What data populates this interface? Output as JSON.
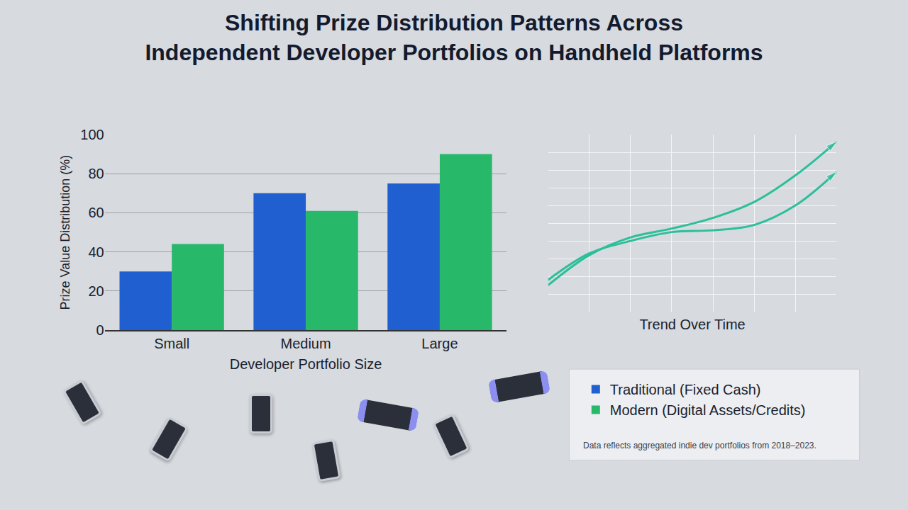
{
  "chart_data": [
    {
      "type": "bar",
      "title": "Shifting Prize Distribution Patterns Across Independent Developer Portfolios on Handheld Platforms",
      "xlabel": "Developer Portfolio Size",
      "ylabel": "Prize Value Distribution (%)",
      "categories": [
        "Small",
        "Medium",
        "Large"
      ],
      "series": [
        {
          "name": "Traditional (Fixed Cash)",
          "color": "#1f5fd0",
          "values": [
            30,
            70,
            75
          ]
        },
        {
          "name": "Modern (Digital Assets/Credits)",
          "color": "#27b86a",
          "values": [
            44,
            61,
            90
          ]
        }
      ],
      "ylim": [
        0,
        100
      ],
      "yticks": [
        0,
        20,
        40,
        60,
        80,
        100
      ],
      "grid": true,
      "legend": "bottom right",
      "annotations": [
        "Data reflects aggregated indie dev portfolios from 2018–2023."
      ]
    },
    {
      "type": "line",
      "xlabel": "Trend Over Time",
      "x": [
        0,
        1,
        2,
        3,
        4,
        5,
        6,
        7
      ],
      "series": [
        {
          "color": "#2bbf9a",
          "marker": "arrow",
          "values": [
            1.5,
            3.2,
            4.2,
            4.7,
            5.3,
            6.2,
            7.7,
            9.6
          ]
        },
        {
          "color": "#2bbf9a",
          "marker": "arrow",
          "values": [
            1.8,
            3.3,
            4.0,
            4.5,
            4.6,
            4.9,
            6.0,
            7.9
          ]
        }
      ],
      "xlim": [
        0,
        7
      ],
      "xticks": [
        0,
        1,
        2,
        3,
        4,
        5,
        6,
        7
      ],
      "ylim": [
        0,
        10
      ],
      "yticks": [
        0,
        1,
        2,
        3,
        4,
        5,
        6,
        7,
        8,
        9,
        10
      ],
      "grid": true,
      "tick_labels": false
    }
  ]
}
